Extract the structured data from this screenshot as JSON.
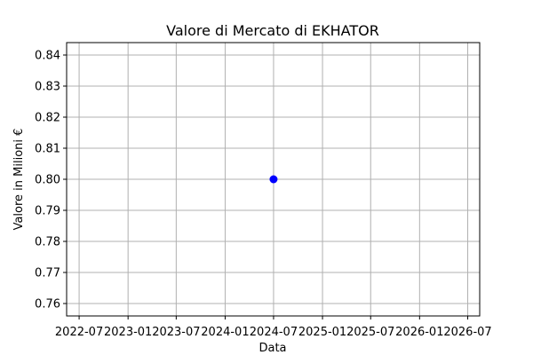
{
  "chart_data": {
    "type": "scatter",
    "title": "Valore di Mercato di EKHATOR",
    "xlabel": "Data",
    "ylabel": "Valore in Milioni €",
    "x_ticks": [
      "2022-07",
      "2023-01",
      "2023-07",
      "2024-01",
      "2024-07",
      "2025-01",
      "2025-07",
      "2026-01",
      "2026-07"
    ],
    "y_ticks": [
      "0.76",
      "0.77",
      "0.78",
      "0.79",
      "0.80",
      "0.81",
      "0.82",
      "0.83",
      "0.84"
    ],
    "ylim": [
      0.756,
      0.844
    ],
    "xlim": [
      "2022-05-15",
      "2026-08-15"
    ],
    "grid": true,
    "series": [
      {
        "color": "#0000ff",
        "points": [
          {
            "x": "2024-07-01",
            "y": 0.8
          }
        ]
      }
    ]
  }
}
